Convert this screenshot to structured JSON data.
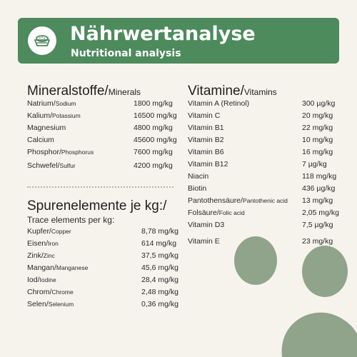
{
  "header": {
    "title": "Nährwertanalyse",
    "subtitle": "Nutritional analysis",
    "icon": "pet-food-bowl-icon",
    "color": "#4d8a5c"
  },
  "minerals": {
    "title_main": "Mineralstoffe/",
    "title_small": "Minerals",
    "rows": [
      {
        "main": "Natrium/",
        "small": "Sodium",
        "value": "1800 mg/kg"
      },
      {
        "main": "Kalium/",
        "small": "Potassium",
        "value": "16500 mg/kg"
      },
      {
        "main": "Magnesium",
        "small": "",
        "value": "4800 mg/kg"
      },
      {
        "main": "Calcium",
        "small": "",
        "value": "45600 mg/kg"
      },
      {
        "main": "Phosphor/",
        "small": "Phosphorus",
        "value": "7600 mg/kg"
      },
      {
        "main": "Schwefel/",
        "small": "Sulfur",
        "value": "4200 mg/kg"
      }
    ]
  },
  "trace": {
    "title": "Spurenelemente je kg:/",
    "subtitle": "Trace elements per kg:",
    "rows": [
      {
        "main": "Kupfer/",
        "small": "Copper",
        "value": "8,78 mg/kg"
      },
      {
        "main": "Eisen/",
        "small": "Iron",
        "value": "614 mg/kg"
      },
      {
        "main": "Zink/",
        "small": "Zinc",
        "value": "37,5 mg/kg"
      },
      {
        "main": "Mangan/",
        "small": "Manganese",
        "value": "45,6 mg/kg"
      },
      {
        "main": "Iod/",
        "small": "Iodine",
        "value": "28,4 mg/kg"
      },
      {
        "main": "Chrom/",
        "small": "Chrome",
        "value": "2,48 mg/kg"
      },
      {
        "main": "Selen/",
        "small": "Selenium",
        "value": "0,36 mg/kg"
      }
    ]
  },
  "vitamins": {
    "title_main": "Vitamine/",
    "title_small": "Vitamins",
    "rows": [
      {
        "main": "Vitamin A (Retinol)",
        "small": "",
        "value": "300 µg/kg"
      },
      {
        "main": "Vitamin C",
        "small": "",
        "value": "20 mg/kg"
      },
      {
        "main": "Vitamin B1",
        "small": "",
        "value": "22 mg/kg"
      },
      {
        "main": "Vitamin B2",
        "small": "",
        "value": "10 mg/kg"
      },
      {
        "main": "Vitamin B6",
        "small": "",
        "value": "16 mg/kg"
      },
      {
        "main": "Vitamin B12",
        "small": "",
        "value": "7 µg/kg"
      },
      {
        "main": "Niacin",
        "small": "",
        "value": "118 mg/kg"
      },
      {
        "main": "Biotin",
        "small": "",
        "value": "436 µg/kg"
      },
      {
        "main": "Pantothensäure/",
        "small": "Pantothenic acid",
        "value": "13 mg/kg"
      },
      {
        "main": "Folsäure/",
        "small": "Folic acid",
        "value": "2,05 mg/kg"
      },
      {
        "main": "Vitamin D3",
        "small": "",
        "value": "7,5 µg/kg"
      },
      {
        "main": "Vitamin E",
        "small": "",
        "value": "23 mg/kg"
      }
    ]
  },
  "decoration": {
    "paw_icon": "paw-print-icon",
    "paw_color": "#8fa48a"
  }
}
